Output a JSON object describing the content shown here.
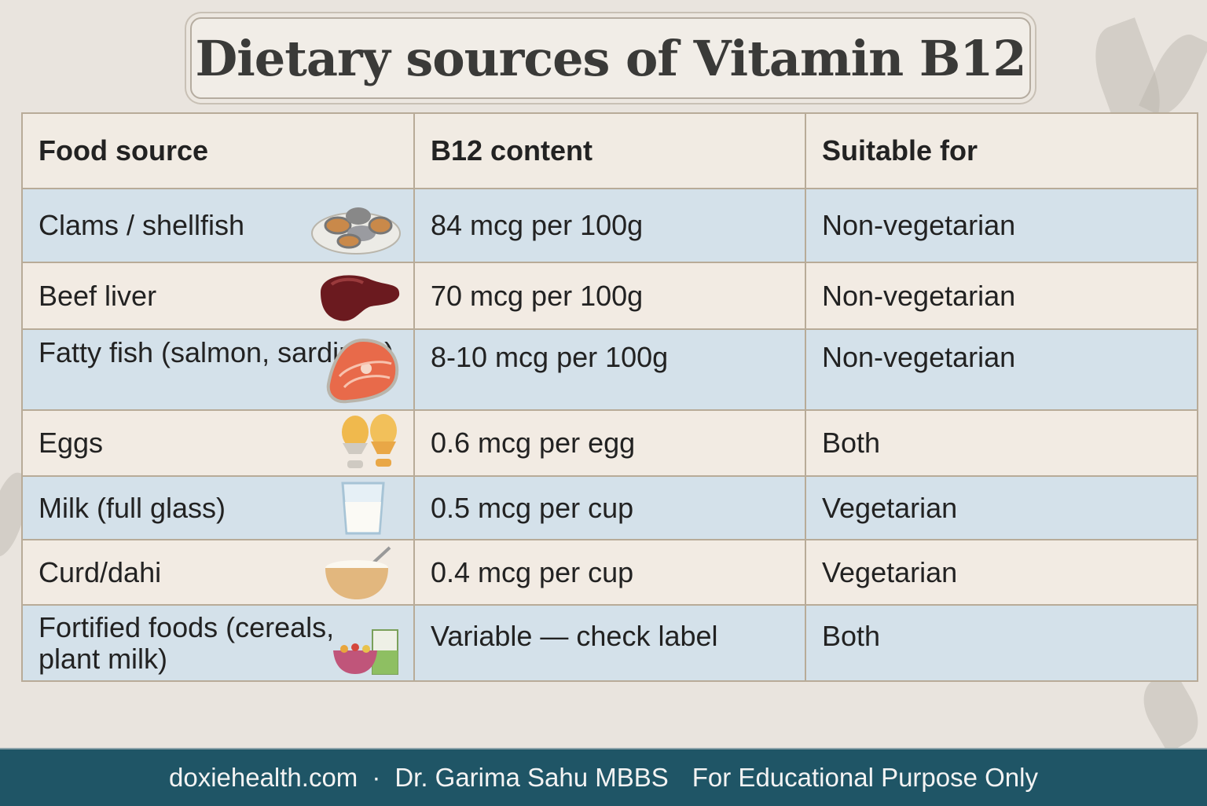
{
  "title": "Dietary sources of Vitamin B12",
  "table": {
    "headers": [
      "Food source",
      "B12 content",
      "Suitable for"
    ],
    "rows": [
      {
        "food": "Clams / shellfish",
        "content": "84 mcg per 100g",
        "suitable": "Non-vegetarian",
        "icon": "clams-icon"
      },
      {
        "food": "Beef liver",
        "content": "70 mcg per 100g",
        "suitable": "Non-vegetarian",
        "icon": "liver-icon"
      },
      {
        "food": "Fatty fish (salmon, sardines)",
        "content": "8-10 mcg per 100g",
        "suitable": "Non-vegetarian",
        "icon": "salmon-icon"
      },
      {
        "food": "Eggs",
        "content": "0.6 mcg per egg",
        "suitable": "Both",
        "icon": "eggs-icon"
      },
      {
        "food": "Milk (full glass)",
        "content": "0.5 mcg per cup",
        "suitable": "Vegetarian",
        "icon": "milk-glass-icon"
      },
      {
        "food": "Curd/dahi",
        "content": "0.4 mcg per cup",
        "suitable": "Vegetarian",
        "icon": "curd-bowl-icon"
      },
      {
        "food": "Fortified foods (cereals, plant milk)",
        "content": "Variable — check label",
        "suitable": "Both",
        "icon": "cereal-milk-icon"
      }
    ]
  },
  "footer": {
    "site": "doxiehealth.com",
    "separator": "·",
    "author": "Dr. Garima Sahu MBBS",
    "disclaimer": "For Educational Purpose Only"
  },
  "colors": {
    "row_blue": "#d4e1ea",
    "row_cream": "#f2ebe3",
    "footer": "#1f5566",
    "title": "#3a3a38"
  }
}
